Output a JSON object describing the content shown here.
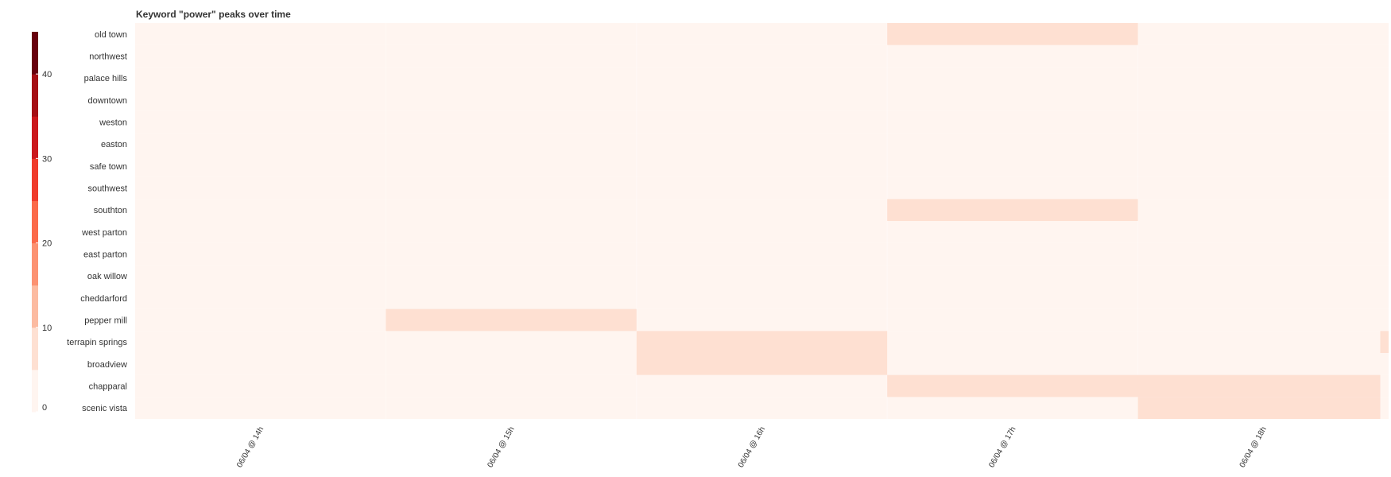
{
  "chart_data": {
    "type": "heatmap",
    "title": "Keyword \"power\" peaks over time",
    "xlabel": "",
    "ylabel": "",
    "y_categories": [
      "old town",
      "northwest",
      "palace hills",
      "downtown",
      "weston",
      "easton",
      "safe town",
      "southwest",
      "southton",
      "west parton",
      "east parton",
      "oak willow",
      "cheddarford",
      "pepper mill",
      "terrapin springs",
      "broadview",
      "chapparal",
      "scenic vista"
    ],
    "x_tick_labels": [
      "06/04 @ 14h",
      "06/04 @ 15h",
      "06/04 @ 16h",
      "06/04 @ 17h",
      "06/04 @ 18h"
    ],
    "x_range": [
      "06/04 @ 13:30",
      "06/04 @ 18:30"
    ],
    "cells": [
      {
        "y": "old town",
        "x_start": "06/04 @ 16:30",
        "x_end": "06/04 @ 17:30",
        "value": 5
      },
      {
        "y": "southton",
        "x_start": "06/04 @ 16:30",
        "x_end": "06/04 @ 17:30",
        "value": 5
      },
      {
        "y": "pepper mill",
        "x_start": "06/04 @ 14:30",
        "x_end": "06/04 @ 15:30",
        "value": 5
      },
      {
        "y": "terrapin springs",
        "x_start": "06/04 @ 15:30",
        "x_end": "06/04 @ 16:30",
        "value": 5
      },
      {
        "y": "terrapin springs",
        "x_start": "06/04 @ 18:28",
        "x_end": "06/04 @ 18:30",
        "value": 5
      },
      {
        "y": "broadview",
        "x_start": "06/04 @ 15:30",
        "x_end": "06/04 @ 16:30",
        "value": 5
      },
      {
        "y": "chapparal",
        "x_start": "06/04 @ 16:30",
        "x_end": "06/04 @ 18:28",
        "value": 5
      },
      {
        "y": "scenic vista",
        "x_start": "06/04 @ 17:30",
        "x_end": "06/04 @ 18:28",
        "value": 5
      }
    ],
    "base_value": 0,
    "colorbar": {
      "ticks": [
        0,
        10,
        20,
        30,
        40
      ],
      "range": [
        0,
        45
      ],
      "colors": [
        "#fff5f0",
        "#fee0d2",
        "#fcbba1",
        "#fc9272",
        "#fb6a4a",
        "#ef3b2c",
        "#cb181d",
        "#a50f15",
        "#67000d"
      ]
    },
    "grid": false,
    "legend": "colorbar-left"
  }
}
